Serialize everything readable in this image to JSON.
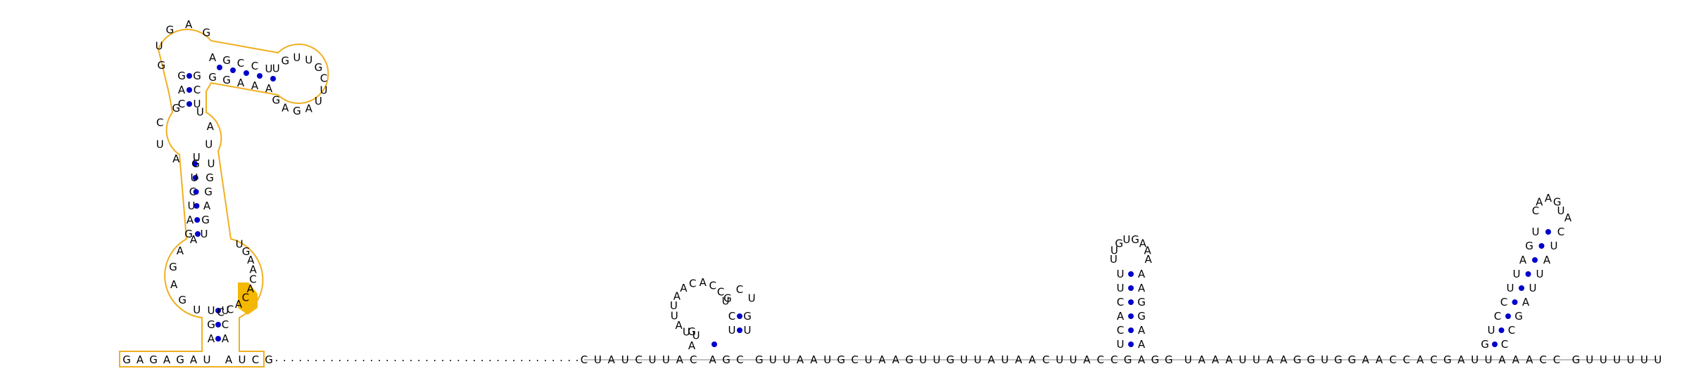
{
  "diagram": {
    "type": "rna-secondary-structure",
    "colors": {
      "background": "#ffffff",
      "nucleotide": "#000000",
      "pair": "#0000cc",
      "highlight_outline": "#f0b020",
      "highlight_fill": "#f5b800"
    },
    "five_prime_stem_structure": {
      "label": "structured 5' domain",
      "outer_left_strand": "GAGAGAU",
      "outer_right_strand": "AUCG",
      "stem1": {
        "left": "AGU",
        "right": "UCA"
      },
      "interior_loop_large": {
        "left": "UGAGAA",
        "right": "CCACACAAGU"
      },
      "stem2": {
        "left": "GUCUAG",
        "right": "UGAGGU"
      },
      "interior_loop_small": {
        "left": "AUCG",
        "right": "UUAU"
      },
      "stem3": {
        "left": "GAC",
        "right": "UCG"
      },
      "multiloop_left": "GUGAG",
      "hairpin_stem": {
        "left": "AGCCU",
        "right": "GGAAA"
      },
      "hairpin_loop": "UGUUGCUUAGAG",
      "highlighted_segment": "ACAC"
    },
    "spacer_segment": ".......................................",
    "backbone_sequence": "CUAUCUUAC AGC GUUAAUGCUAAGUUGUUAUAACUUACCGAGG UAAAUUAAGGUGGAACCACGAUUAAACC GUUUUUU",
    "small_hairpins": [
      {
        "name": "hairpin-1",
        "stem_5p": "AG",
        "stem_3p": "GC",
        "loop": "UUAUUAACACCU",
        "inner_stem_5p": "UC",
        "inner_stem_3p": "UG",
        "inner_loop": "GCU"
      },
      {
        "name": "hairpin-2",
        "stem_5p": "UCACUU",
        "stem_3p": "AAGGAA",
        "loop": "UUGUGAAA"
      },
      {
        "name": "hairpin-3",
        "stem_5p": "GUCCUUAGU",
        "stem_3p": "CCGAUUAUCA",
        "loop": "CAAGU"
      }
    ],
    "three_prime_tail": "GUUUUUU"
  }
}
